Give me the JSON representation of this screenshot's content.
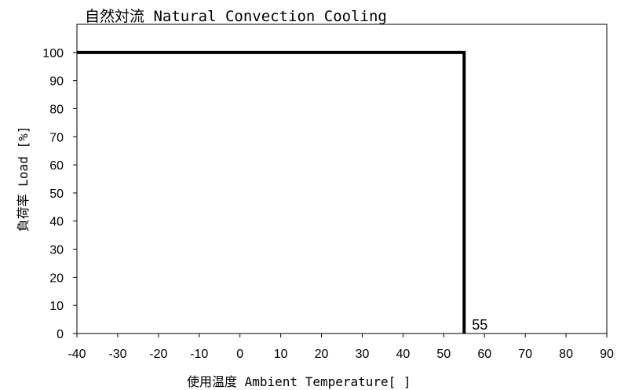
{
  "chart_data": {
    "type": "line",
    "title": "自然対流 Natural Convection Cooling",
    "xlabel": "使用温度  Ambient Temperature[  ]",
    "ylabel": "負荷率  Load [%]",
    "xlim": [
      -40,
      90
    ],
    "ylim": [
      0,
      110
    ],
    "x_ticks": [
      -40,
      -30,
      -20,
      -10,
      0,
      10,
      20,
      30,
      40,
      50,
      60,
      70,
      80,
      90
    ],
    "y_ticks": [
      0,
      10,
      20,
      30,
      40,
      50,
      60,
      70,
      80,
      90,
      100
    ],
    "grid": false,
    "legend": "none",
    "series": [
      {
        "color": "#000000",
        "points": [
          {
            "x": -40,
            "y": 100
          },
          {
            "x": 55,
            "y": 100
          },
          {
            "x": 55,
            "y": 0
          }
        ]
      }
    ],
    "annotations": [
      {
        "text": "55",
        "x": 55,
        "y": 0
      }
    ]
  }
}
